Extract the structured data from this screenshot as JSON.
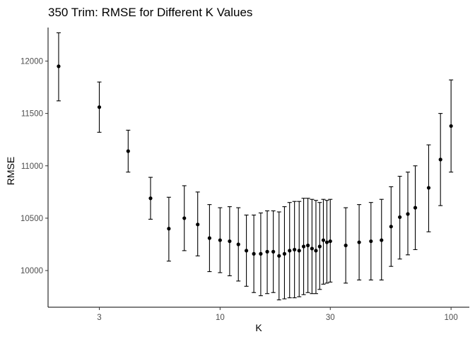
{
  "chart_data": {
    "type": "scatter",
    "title": "350 Trim: RMSE for Different K Values",
    "xlabel": "K",
    "ylabel": "RMSE",
    "x_scale": "log10",
    "xlim": [
      1.8,
      120
    ],
    "ylim": [
      9650,
      12320
    ],
    "x_ticks": [
      3,
      10,
      30,
      100
    ],
    "x_tick_labels": [
      "3",
      "10",
      "30",
      "100"
    ],
    "y_ticks": [
      10000,
      10500,
      11000,
      11500,
      12000
    ],
    "y_tick_labels": [
      "10000",
      "10500",
      "11000",
      "11500",
      "12000"
    ],
    "grid": false,
    "legend": "none",
    "point_color": "#000000",
    "points": [
      {
        "k": 2,
        "rmse": 11950,
        "lower": 11620,
        "upper": 12270
      },
      {
        "k": 3,
        "rmse": 11560,
        "lower": 11320,
        "upper": 11800
      },
      {
        "k": 4,
        "rmse": 11140,
        "lower": 10940,
        "upper": 11340
      },
      {
        "k": 5,
        "rmse": 10690,
        "lower": 10490,
        "upper": 10890
      },
      {
        "k": 6,
        "rmse": 10400,
        "lower": 10090,
        "upper": 10700
      },
      {
        "k": 7,
        "rmse": 10500,
        "lower": 10190,
        "upper": 10810
      },
      {
        "k": 8,
        "rmse": 10440,
        "lower": 10140,
        "upper": 10750
      },
      {
        "k": 9,
        "rmse": 10310,
        "lower": 9990,
        "upper": 10630
      },
      {
        "k": 10,
        "rmse": 10290,
        "lower": 9980,
        "upper": 10600
      },
      {
        "k": 11,
        "rmse": 10280,
        "lower": 9950,
        "upper": 10610
      },
      {
        "k": 12,
        "rmse": 10250,
        "lower": 9900,
        "upper": 10600
      },
      {
        "k": 13,
        "rmse": 10190,
        "lower": 9850,
        "upper": 10530
      },
      {
        "k": 14,
        "rmse": 10160,
        "lower": 9790,
        "upper": 10530
      },
      {
        "k": 15,
        "rmse": 10160,
        "lower": 9760,
        "upper": 10550
      },
      {
        "k": 16,
        "rmse": 10180,
        "lower": 9780,
        "upper": 10570
      },
      {
        "k": 17,
        "rmse": 10180,
        "lower": 9790,
        "upper": 10570
      },
      {
        "k": 18,
        "rmse": 10140,
        "lower": 9720,
        "upper": 10560
      },
      {
        "k": 19,
        "rmse": 10160,
        "lower": 9730,
        "upper": 10610
      },
      {
        "k": 20,
        "rmse": 10190,
        "lower": 9740,
        "upper": 10650
      },
      {
        "k": 21,
        "rmse": 10200,
        "lower": 9740,
        "upper": 10660
      },
      {
        "k": 22,
        "rmse": 10190,
        "lower": 9750,
        "upper": 10660
      },
      {
        "k": 23,
        "rmse": 10230,
        "lower": 9770,
        "upper": 10690
      },
      {
        "k": 24,
        "rmse": 10240,
        "lower": 9790,
        "upper": 10690
      },
      {
        "k": 25,
        "rmse": 10210,
        "lower": 9780,
        "upper": 10680
      },
      {
        "k": 26,
        "rmse": 10190,
        "lower": 9780,
        "upper": 10670
      },
      {
        "k": 27,
        "rmse": 10230,
        "lower": 9820,
        "upper": 10650
      },
      {
        "k": 28,
        "rmse": 10290,
        "lower": 9870,
        "upper": 10680
      },
      {
        "k": 29,
        "rmse": 10270,
        "lower": 9880,
        "upper": 10670
      },
      {
        "k": 30,
        "rmse": 10280,
        "lower": 9890,
        "upper": 10680
      },
      {
        "k": 35,
        "rmse": 10240,
        "lower": 9880,
        "upper": 10600
      },
      {
        "k": 40,
        "rmse": 10270,
        "lower": 9910,
        "upper": 10630
      },
      {
        "k": 45,
        "rmse": 10280,
        "lower": 9910,
        "upper": 10650
      },
      {
        "k": 50,
        "rmse": 10290,
        "lower": 9910,
        "upper": 10680
      },
      {
        "k": 55,
        "rmse": 10420,
        "lower": 10040,
        "upper": 10800
      },
      {
        "k": 60,
        "rmse": 10510,
        "lower": 10110,
        "upper": 10900
      },
      {
        "k": 65,
        "rmse": 10540,
        "lower": 10150,
        "upper": 10940
      },
      {
        "k": 70,
        "rmse": 10600,
        "lower": 10200,
        "upper": 11000
      },
      {
        "k": 80,
        "rmse": 10790,
        "lower": 10370,
        "upper": 11200
      },
      {
        "k": 90,
        "rmse": 11060,
        "lower": 10620,
        "upper": 11500
      },
      {
        "k": 100,
        "rmse": 11380,
        "lower": 10940,
        "upper": 11820
      }
    ]
  }
}
